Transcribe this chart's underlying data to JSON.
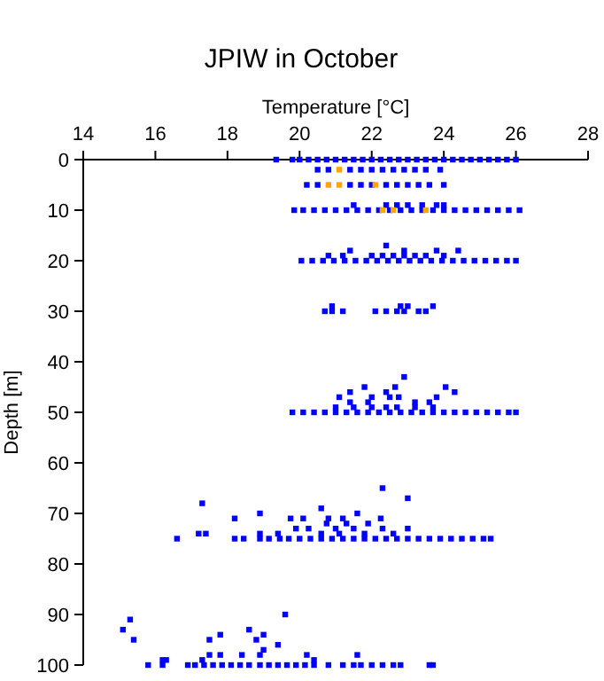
{
  "chart_data": {
    "type": "scatter",
    "title": "JPIW in October",
    "xlabel": "Temperature [°C]",
    "ylabel": "Depth [m]",
    "xlim": [
      14,
      28
    ],
    "xticks": [
      14,
      16,
      18,
      20,
      22,
      24,
      26,
      28
    ],
    "ylim": [
      100,
      0
    ],
    "yticks": [
      0,
      10,
      20,
      30,
      40,
      50,
      60,
      70,
      80,
      90,
      100
    ],
    "marker": "square",
    "series": [
      {
        "color": "#0000ff",
        "x": [
          19.35,
          19.8,
          20.0,
          20.25,
          20.5,
          20.75,
          21.0,
          21.25,
          21.5,
          21.75,
          22.0,
          22.25,
          22.5,
          22.75,
          23.0,
          23.25,
          23.5,
          23.75,
          24.0,
          24.25,
          24.5,
          24.75,
          25.0,
          25.25,
          25.5,
          25.75,
          26.0,
          20.5,
          20.8,
          21.4,
          21.7,
          22.0,
          22.3,
          22.6,
          22.9,
          23.2,
          23.5,
          23.9,
          20.2,
          20.5,
          21.4,
          21.7,
          22.0,
          22.4,
          22.7,
          23.0,
          23.3,
          23.6,
          24.0,
          21.5,
          22.4,
          22.7,
          23.0,
          23.4,
          23.8,
          24.0,
          19.85,
          20.1,
          20.4,
          20.7,
          21.0,
          21.3,
          21.6,
          21.9,
          22.2,
          22.5,
          22.8,
          23.1,
          23.4,
          23.7,
          24.0,
          24.3,
          24.6,
          24.9,
          25.2,
          25.5,
          25.8,
          26.1,
          22.4,
          21.4,
          22.9,
          23.8,
          24.4,
          20.8,
          21.2,
          22.0,
          22.3,
          22.6,
          22.9,
          23.2,
          23.5,
          24.0,
          20.05,
          20.35,
          20.65,
          20.95,
          21.25,
          21.55,
          21.85,
          22.15,
          22.45,
          22.75,
          23.05,
          23.35,
          23.65,
          23.95,
          24.25,
          24.55,
          24.85,
          25.15,
          25.45,
          25.75,
          26.0,
          20.9,
          22.8,
          23.0,
          23.7,
          20.7,
          20.9,
          21.2,
          22.1,
          22.4,
          22.7,
          22.9,
          23.3,
          23.5,
          22.9,
          24.05,
          21.8,
          22.65,
          21.4,
          22.4,
          24.3,
          21.1,
          22.0,
          22.5,
          22.75,
          23.8,
          23.2,
          23.6,
          21.4,
          21.9,
          21.0,
          21.5,
          22.0,
          22.4,
          22.7,
          23.2,
          23.7,
          19.8,
          20.1,
          20.4,
          20.7,
          21.0,
          21.3,
          21.6,
          21.9,
          22.2,
          22.5,
          22.8,
          23.1,
          23.4,
          23.7,
          24.0,
          24.3,
          24.6,
          24.9,
          25.2,
          25.5,
          25.8,
          26.0,
          22.3,
          23.0,
          17.3,
          20.6,
          18.9,
          21.6,
          18.2,
          19.75,
          20.1,
          20.8,
          21.2,
          22.25,
          20.75,
          21.3,
          21.9,
          19.9,
          20.25,
          21.0,
          21.5,
          22.3,
          23.0,
          17.2,
          17.4,
          18.9,
          19.4,
          20.6,
          21.1,
          21.8,
          22.6,
          16.6,
          18.2,
          18.45,
          18.9,
          19.15,
          19.45,
          19.7,
          20.0,
          20.3,
          20.6,
          20.9,
          21.2,
          21.5,
          21.8,
          22.1,
          22.4,
          22.7,
          23.0,
          23.3,
          23.6,
          23.9,
          24.2,
          24.5,
          24.8,
          25.1,
          25.3,
          15.1,
          15.3,
          15.4,
          19.6,
          17.5,
          17.8,
          18.6,
          18.8,
          19.0,
          19.0,
          19.4,
          17.5,
          17.8,
          18.4,
          18.9,
          20.2,
          21.6,
          16.2,
          16.3,
          17.3,
          20.4,
          15.8,
          16.2,
          16.9,
          17.1,
          17.35,
          17.6,
          17.85,
          18.1,
          18.35,
          18.6,
          18.9,
          19.15,
          19.4,
          19.65,
          19.9,
          20.15,
          20.4,
          20.8,
          21.2,
          21.5,
          21.7,
          22.0,
          22.3,
          22.6,
          22.8,
          23.6,
          23.7
        ],
        "values": [
          0,
          0,
          0,
          0,
          0,
          0,
          0,
          0,
          0,
          0,
          0,
          0,
          0,
          0,
          0,
          0,
          0,
          0,
          0,
          0,
          0,
          0,
          0,
          0,
          0,
          0,
          0,
          2,
          2,
          2,
          2,
          2,
          2,
          2,
          2,
          2,
          2,
          2,
          5,
          5,
          5,
          5,
          5,
          5,
          5,
          5,
          5,
          5,
          5,
          9,
          9,
          9,
          9,
          9,
          9,
          9,
          10,
          10,
          10,
          10,
          10,
          10,
          10,
          10,
          10,
          10,
          10,
          10,
          10,
          10,
          10,
          10,
          10,
          10,
          10,
          10,
          10,
          10,
          17,
          18,
          18,
          18,
          18,
          19,
          19,
          19,
          19,
          19,
          19,
          19,
          19,
          19,
          20,
          20,
          20,
          20,
          20,
          20,
          20,
          20,
          20,
          20,
          20,
          20,
          20,
          20,
          20,
          20,
          20,
          20,
          20,
          20,
          20,
          29,
          29,
          29,
          29,
          30,
          30,
          30,
          30,
          30,
          30,
          30,
          30,
          30,
          43,
          45,
          45,
          45,
          46,
          46,
          46,
          47,
          47,
          47,
          47,
          47,
          48,
          48,
          48,
          48,
          49,
          49,
          49,
          49,
          49,
          49,
          49,
          50,
          50,
          50,
          50,
          50,
          50,
          50,
          50,
          50,
          50,
          50,
          50,
          50,
          50,
          50,
          50,
          50,
          50,
          50,
          50,
          50,
          50,
          65,
          67,
          68,
          69,
          70,
          70,
          71,
          71,
          71,
          71,
          71,
          71,
          72,
          72,
          72,
          73,
          73,
          73,
          73,
          73,
          73,
          74,
          74,
          74,
          74,
          74,
          74,
          74,
          74,
          75,
          75,
          75,
          75,
          75,
          75,
          75,
          75,
          75,
          75,
          75,
          75,
          75,
          75,
          75,
          75,
          75,
          75,
          75,
          75,
          75,
          75,
          75,
          75,
          75,
          75,
          93,
          91,
          95,
          90,
          95,
          94,
          93,
          95,
          94,
          97,
          96,
          98,
          98,
          98,
          98,
          98,
          98,
          99,
          99,
          99,
          99,
          100,
          100,
          100,
          100,
          100,
          100,
          100,
          100,
          100,
          100,
          100,
          100,
          100,
          100,
          100,
          100,
          100,
          100,
          100,
          100,
          100,
          100,
          100,
          100,
          100,
          100,
          100
        ]
      },
      {
        "color": "#ffa500",
        "x": [
          21.1,
          20.8,
          21.1,
          22.1,
          22.3,
          22.6,
          23.5
        ],
        "values": [
          2,
          5,
          5,
          5,
          10,
          10,
          10
        ]
      }
    ]
  }
}
